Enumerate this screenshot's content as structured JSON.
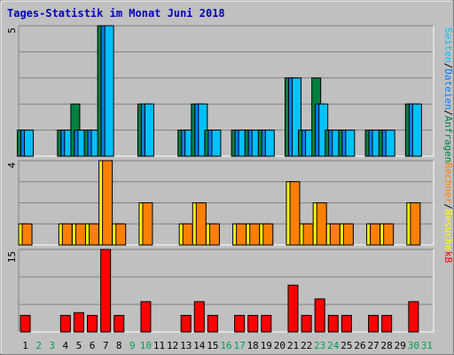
{
  "chart_data": [
    {
      "type": "bar",
      "title": "Tages-Statistik im Monat Juni 2018",
      "categories": [
        "1",
        "2",
        "3",
        "4",
        "5",
        "6",
        "7",
        "8",
        "9",
        "10",
        "11",
        "12",
        "13",
        "14",
        "15",
        "16",
        "17",
        "18",
        "19",
        "20",
        "21",
        "22",
        "23",
        "24",
        "25",
        "26",
        "27",
        "28",
        "29",
        "30",
        "31"
      ],
      "weekend_days": [
        "2",
        "3",
        "9",
        "10",
        "16",
        "17",
        "23",
        "24",
        "30",
        "31"
      ],
      "ymax_label": "5",
      "ylim": [
        0,
        5
      ],
      "right_label": [
        "Seiten",
        "/",
        "Dateien",
        "/",
        "Anfragen"
      ],
      "series": [
        {
          "name": "Anfragen",
          "color": "#008040",
          "values": [
            1,
            0,
            0,
            1,
            2,
            1,
            5,
            0,
            0,
            2,
            0,
            0,
            1,
            2,
            1,
            0,
            1,
            1,
            1,
            0,
            3,
            1,
            3,
            1,
            1,
            0,
            1,
            1,
            0,
            2,
            0
          ]
        },
        {
          "name": "Dateien",
          "color": "#0080ff",
          "values": [
            1,
            0,
            0,
            1,
            1,
            1,
            5,
            0,
            0,
            2,
            0,
            0,
            1,
            2,
            1,
            0,
            1,
            1,
            1,
            0,
            3,
            1,
            2,
            1,
            1,
            0,
            1,
            1,
            0,
            2,
            0
          ]
        },
        {
          "name": "Seiten",
          "color": "#00c0ff",
          "values": [
            1,
            0,
            0,
            1,
            1,
            1,
            5,
            0,
            0,
            2,
            0,
            0,
            1,
            2,
            1,
            0,
            1,
            1,
            1,
            0,
            3,
            1,
            2,
            1,
            1,
            0,
            1,
            1,
            0,
            2,
            0
          ]
        }
      ]
    },
    {
      "type": "bar",
      "ymax_label": "4",
      "ylim": [
        0,
        4
      ],
      "right_label": [
        "Rechner",
        "/",
        "Besuche"
      ],
      "series": [
        {
          "name": "Besuche",
          "color": "#ffff00",
          "values": [
            1,
            0,
            0,
            1,
            1,
            1,
            4,
            1,
            0,
            2,
            0,
            0,
            1,
            2,
            1,
            0,
            1,
            1,
            1,
            0,
            3,
            1,
            2,
            1,
            1,
            0,
            1,
            1,
            0,
            2,
            0
          ]
        },
        {
          "name": "Rechner",
          "color": "#ff8000",
          "values": [
            1,
            0,
            0,
            1,
            1,
            1,
            4,
            1,
            0,
            2,
            0,
            0,
            1,
            2,
            1,
            0,
            1,
            1,
            1,
            0,
            3,
            1,
            2,
            1,
            1,
            0,
            1,
            1,
            0,
            2,
            0
          ]
        }
      ]
    },
    {
      "type": "bar",
      "ymax_label": "15",
      "ylim": [
        0,
        15
      ],
      "right_label": [
        "kB"
      ],
      "series": [
        {
          "name": "kB",
          "color": "#ff0000",
          "values": [
            3,
            0,
            0,
            3,
            3.5,
            3,
            15,
            3,
            0,
            5.5,
            0,
            0,
            3,
            5.5,
            3,
            0,
            3,
            3,
            3,
            0,
            8.5,
            3,
            6,
            3,
            3,
            0,
            3,
            3,
            0,
            5.5,
            0
          ]
        }
      ]
    }
  ],
  "colors": {
    "title": "#0000c0",
    "weekday_label": "#000000",
    "weekend_label": "#00a050",
    "plot_background": "#c0c0c0",
    "border_dark": "#808080"
  }
}
